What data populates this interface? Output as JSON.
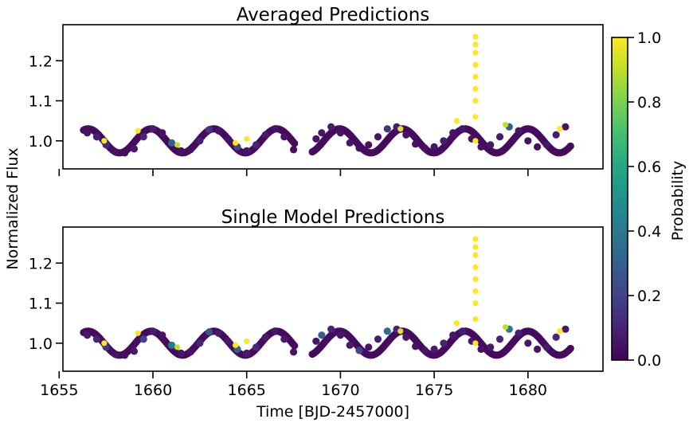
{
  "chart_data": [
    {
      "type": "scatter",
      "title": "Averaged Predictions",
      "xlabel": "",
      "ylabel": "Normalized Flux",
      "xlim": [
        1655.2,
        1684.0
      ],
      "ylim": [
        0.93,
        1.29
      ],
      "xticks": [
        1655,
        1660,
        1665,
        1670,
        1675,
        1680
      ],
      "xtick_labels_visible": false,
      "yticks": [
        1.0,
        1.1,
        1.2
      ],
      "ytick_labels": [
        "1.0",
        "1.1",
        "1.2"
      ],
      "grid": false,
      "legend": "none",
      "color_by": "Probability",
      "segments": [
        [
          1656.3,
          1667.6
        ],
        [
          1668.5,
          1682.3
        ]
      ],
      "series": [
        {
          "points": [
            [
              1656.5,
              1.02
            ],
            [
              1657.0,
              1.01
            ],
            [
              1657.5,
              0.99
            ],
            [
              1658.0,
              0.972
            ],
            [
              1658.5,
              0.97
            ],
            [
              1659.0,
              0.98
            ],
            [
              1659.5,
              1.01
            ],
            [
              1660.0,
              1.03
            ],
            [
              1660.5,
              1.02
            ],
            [
              1661.0,
              0.995
            ],
            [
              1661.5,
              0.975
            ],
            [
              1662.0,
              0.978
            ],
            [
              1662.5,
              1.0
            ],
            [
              1663.0,
              1.028
            ],
            [
              1663.5,
              1.025
            ],
            [
              1664.0,
              1.005
            ],
            [
              1664.5,
              0.985
            ],
            [
              1665.0,
              0.975
            ],
            [
              1665.5,
              0.99
            ],
            [
              1666.0,
              1.015
            ],
            [
              1666.5,
              1.03
            ],
            [
              1667.0,
              1.01
            ],
            [
              1667.5,
              0.978
            ],
            [
              1668.7,
              1.005
            ],
            [
              1669.0,
              1.02
            ],
            [
              1669.5,
              1.035
            ],
            [
              1670.0,
              1.02
            ],
            [
              1670.5,
              0.995
            ],
            [
              1671.0,
              0.982
            ],
            [
              1671.5,
              0.99
            ],
            [
              1672.0,
              1.01
            ],
            [
              1672.5,
              1.03
            ],
            [
              1673.0,
              1.035
            ],
            [
              1673.5,
              1.015
            ],
            [
              1674.0,
              0.992
            ],
            [
              1674.5,
              0.982
            ],
            [
              1675.0,
              0.985
            ],
            [
              1675.5,
              1.0
            ],
            [
              1676.0,
              1.02
            ],
            [
              1676.5,
              1.03
            ],
            [
              1677.0,
              1.005
            ],
            [
              1677.5,
              0.985
            ],
            [
              1678.0,
              0.99
            ],
            [
              1678.5,
              1.01
            ],
            [
              1679.0,
              1.035
            ],
            [
              1679.5,
              1.025
            ],
            [
              1680.0,
              1.0
            ],
            [
              1680.5,
              0.985
            ],
            [
              1681.0,
              0.99
            ],
            [
              1681.5,
              1.015
            ],
            [
              1682.0,
              1.035
            ]
          ],
          "probabilities": [
            0.05,
            0.08,
            0.12,
            0.05,
            0.04,
            0.06,
            0.1,
            0.08,
            0.05,
            0.3,
            0.05,
            0.04,
            0.08,
            0.15,
            0.06,
            0.05,
            0.2,
            0.06,
            0.1,
            0.07,
            0.05,
            0.06,
            0.04,
            0.05,
            0.06,
            0.08,
            0.05,
            0.06,
            0.04,
            0.05,
            0.06,
            0.15,
            0.08,
            0.05,
            0.04,
            0.05,
            0.06,
            0.08,
            0.05,
            0.06,
            0.05,
            0.04,
            0.06,
            0.08,
            0.3,
            0.06,
            0.05,
            0.04,
            0.06,
            0.08,
            0.05
          ]
        },
        {
          "name": "flare",
          "points": [
            [
              1657.4,
              1.0
            ],
            [
              1659.2,
              1.025
            ],
            [
              1661.3,
              0.99
            ],
            [
              1664.4,
              0.995
            ],
            [
              1665.0,
              1.005
            ],
            [
              1673.2,
              1.03
            ],
            [
              1676.2,
              1.05
            ],
            [
              1677.2,
              1.0
            ],
            [
              1677.2,
              1.06
            ],
            [
              1677.2,
              1.1
            ],
            [
              1677.2,
              1.13
            ],
            [
              1677.2,
              1.16
            ],
            [
              1677.2,
              1.19
            ],
            [
              1677.2,
              1.22
            ],
            [
              1677.2,
              1.24
            ],
            [
              1677.2,
              1.26
            ],
            [
              1678.8,
              1.04
            ],
            [
              1681.7,
              1.03
            ]
          ],
          "probabilities": [
            1.0,
            1.0,
            0.9,
            1.0,
            1.0,
            0.95,
            1.0,
            1.0,
            1.0,
            1.0,
            1.0,
            1.0,
            1.0,
            1.0,
            1.0,
            1.0,
            0.9,
            1.0
          ]
        }
      ]
    },
    {
      "type": "scatter",
      "title": "Single Model Predictions",
      "xlabel": "Time [BJD-2457000]",
      "ylabel": "",
      "xlim": [
        1655.2,
        1684.0
      ],
      "ylim": [
        0.93,
        1.29
      ],
      "xticks": [
        1655,
        1660,
        1665,
        1670,
        1675,
        1680
      ],
      "xtick_labels": [
        "1655",
        "1660",
        "1665",
        "1670",
        "1675",
        "1680"
      ],
      "yticks": [
        1.0,
        1.1,
        1.2
      ],
      "ytick_labels": [
        "1.0",
        "1.1",
        "1.2"
      ],
      "grid": false,
      "legend": "none",
      "color_by": "Probability",
      "segments": [
        [
          1656.3,
          1667.6
        ],
        [
          1668.5,
          1682.3
        ]
      ],
      "series": [
        {
          "points": [
            [
              1656.5,
              1.02
            ],
            [
              1657.0,
              1.01
            ],
            [
              1657.5,
              0.99
            ],
            [
              1658.0,
              0.972
            ],
            [
              1658.5,
              0.97
            ],
            [
              1659.0,
              0.98
            ],
            [
              1659.5,
              1.01
            ],
            [
              1660.0,
              1.03
            ],
            [
              1660.5,
              1.02
            ],
            [
              1661.0,
              0.995
            ],
            [
              1661.5,
              0.975
            ],
            [
              1662.0,
              0.978
            ],
            [
              1662.5,
              1.0
            ],
            [
              1663.0,
              1.028
            ],
            [
              1663.5,
              1.025
            ],
            [
              1664.0,
              1.005
            ],
            [
              1664.5,
              0.985
            ],
            [
              1665.0,
              0.975
            ],
            [
              1665.5,
              0.99
            ],
            [
              1666.0,
              1.015
            ],
            [
              1666.5,
              1.03
            ],
            [
              1667.0,
              1.01
            ],
            [
              1667.5,
              0.978
            ],
            [
              1668.7,
              1.005
            ],
            [
              1669.0,
              1.02
            ],
            [
              1669.5,
              1.035
            ],
            [
              1670.0,
              1.02
            ],
            [
              1670.5,
              0.995
            ],
            [
              1671.0,
              0.982
            ],
            [
              1671.5,
              0.99
            ],
            [
              1672.0,
              1.01
            ],
            [
              1672.5,
              1.03
            ],
            [
              1673.0,
              1.035
            ],
            [
              1673.5,
              1.015
            ],
            [
              1674.0,
              0.992
            ],
            [
              1674.5,
              0.982
            ],
            [
              1675.0,
              0.985
            ],
            [
              1675.5,
              1.0
            ],
            [
              1676.0,
              1.02
            ],
            [
              1676.5,
              1.03
            ],
            [
              1677.0,
              1.005
            ],
            [
              1677.5,
              0.985
            ],
            [
              1678.0,
              0.99
            ],
            [
              1678.5,
              1.01
            ],
            [
              1679.0,
              1.035
            ],
            [
              1679.5,
              1.025
            ],
            [
              1680.0,
              1.0
            ],
            [
              1680.5,
              0.985
            ],
            [
              1681.0,
              0.99
            ],
            [
              1681.5,
              1.015
            ],
            [
              1682.0,
              1.035
            ]
          ],
          "probabilities": [
            0.06,
            0.1,
            0.15,
            0.05,
            0.04,
            0.07,
            0.2,
            0.08,
            0.05,
            0.4,
            0.06,
            0.05,
            0.1,
            0.25,
            0.07,
            0.06,
            0.3,
            0.07,
            0.12,
            0.08,
            0.06,
            0.07,
            0.05,
            0.06,
            0.3,
            0.1,
            0.06,
            0.07,
            0.2,
            0.06,
            0.08,
            0.35,
            0.1,
            0.06,
            0.05,
            0.06,
            0.07,
            0.1,
            0.06,
            0.08,
            0.06,
            0.05,
            0.07,
            0.1,
            0.4,
            0.08,
            0.06,
            0.05,
            0.07,
            0.1,
            0.06
          ]
        },
        {
          "name": "flare",
          "points": [
            [
              1657.4,
              1.0
            ],
            [
              1659.2,
              1.025
            ],
            [
              1661.3,
              0.99
            ],
            [
              1664.4,
              0.995
            ],
            [
              1665.0,
              1.005
            ],
            [
              1673.2,
              1.03
            ],
            [
              1676.2,
              1.05
            ],
            [
              1677.2,
              1.0
            ],
            [
              1677.2,
              1.06
            ],
            [
              1677.2,
              1.1
            ],
            [
              1677.2,
              1.13
            ],
            [
              1677.2,
              1.16
            ],
            [
              1677.2,
              1.19
            ],
            [
              1677.2,
              1.22
            ],
            [
              1677.2,
              1.24
            ],
            [
              1677.2,
              1.26
            ],
            [
              1678.8,
              1.04
            ],
            [
              1681.7,
              1.03
            ]
          ],
          "probabilities": [
            1.0,
            1.0,
            0.9,
            1.0,
            1.0,
            0.95,
            1.0,
            1.0,
            1.0,
            1.0,
            1.0,
            1.0,
            1.0,
            1.0,
            1.0,
            1.0,
            0.9,
            1.0
          ]
        }
      ]
    }
  ],
  "colorbar": {
    "label": "Probability",
    "colormap": "viridis",
    "range": [
      0.0,
      1.0
    ],
    "ticks": [
      0.0,
      0.2,
      0.4,
      0.6,
      0.8,
      1.0
    ],
    "tick_labels": [
      "0.0",
      "0.2",
      "0.4",
      "0.6",
      "0.8",
      "1.0"
    ]
  },
  "shared_ylabel": "Normalized Flux"
}
